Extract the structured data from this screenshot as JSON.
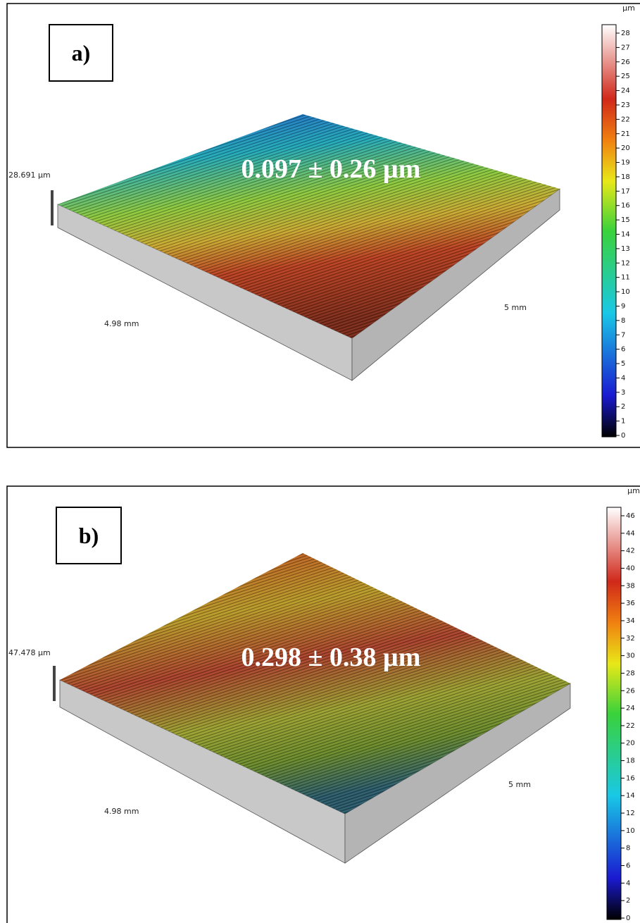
{
  "panels": [
    {
      "label": "a)",
      "height": "28.691 µm",
      "x_size": "4.98 mm",
      "y_size": "5 mm",
      "roughness": "0.097 ± 0.26 µm",
      "colorbar": {
        "unit": "µm",
        "ticks": [
          "0",
          "1",
          "2",
          "3",
          "4",
          "5",
          "6",
          "7",
          "8",
          "9",
          "10",
          "11",
          "12",
          "13",
          "14",
          "15",
          "16",
          "17",
          "18",
          "19",
          "20",
          "21",
          "22",
          "23",
          "24",
          "25",
          "26",
          "27",
          "28"
        ]
      }
    },
    {
      "label": "b)",
      "height": "47.478 µm",
      "x_size": "4.98 mm",
      "y_size": "5 mm",
      "roughness": "0.298 ± 0.38 µm",
      "colorbar": {
        "unit": "µm",
        "ticks": [
          "0",
          "2",
          "4",
          "6",
          "8",
          "10",
          "12",
          "14",
          "16",
          "18",
          "20",
          "22",
          "24",
          "26",
          "28",
          "30",
          "32",
          "34",
          "36",
          "38",
          "40",
          "42",
          "44",
          "46"
        ]
      }
    }
  ]
}
